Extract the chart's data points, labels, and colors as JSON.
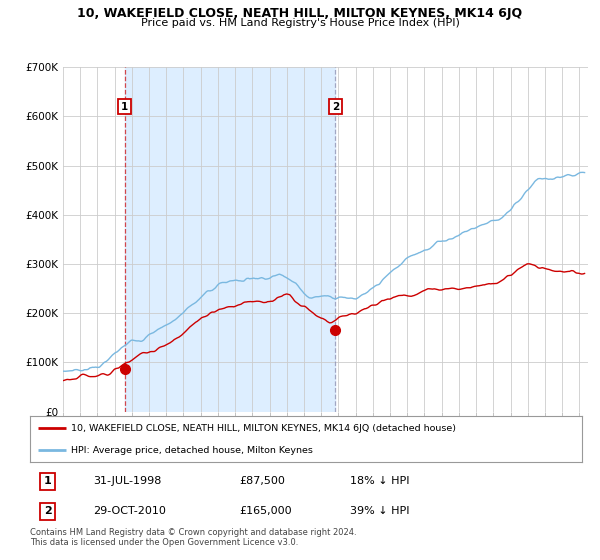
{
  "title": "10, WAKEFIELD CLOSE, NEATH HILL, MILTON KEYNES, MK14 6JQ",
  "subtitle": "Price paid vs. HM Land Registry's House Price Index (HPI)",
  "ylim": [
    0,
    700000
  ],
  "yticks": [
    0,
    100000,
    200000,
    300000,
    400000,
    500000,
    600000,
    700000
  ],
  "ytick_labels": [
    "£0",
    "£100K",
    "£200K",
    "£300K",
    "£400K",
    "£500K",
    "£600K",
    "£700K"
  ],
  "hpi_color": "#7ab8e0",
  "price_color": "#cc0000",
  "marker_color": "#cc0000",
  "shade_color": "#ddeeff",
  "sale1": {
    "date_num": 1998.58,
    "price": 87500,
    "label": "1"
  },
  "sale2": {
    "date_num": 2010.83,
    "price": 165000,
    "label": "2"
  },
  "legend_line1": "10, WAKEFIELD CLOSE, NEATH HILL, MILTON KEYNES, MK14 6JQ (detached house)",
  "legend_line2": "HPI: Average price, detached house, Milton Keynes",
  "table_row1": [
    "1",
    "31-JUL-1998",
    "£87,500",
    "18% ↓ HPI"
  ],
  "table_row2": [
    "2",
    "29-OCT-2010",
    "£165,000",
    "39% ↓ HPI"
  ],
  "footer": "Contains HM Land Registry data © Crown copyright and database right 2024.\nThis data is licensed under the Open Government Licence v3.0.",
  "background_color": "#ffffff",
  "grid_color": "#cccccc",
  "vline1_color": "#cc0000",
  "vline2_color": "#8888aa",
  "xmin": 1995,
  "xmax": 2025.5
}
